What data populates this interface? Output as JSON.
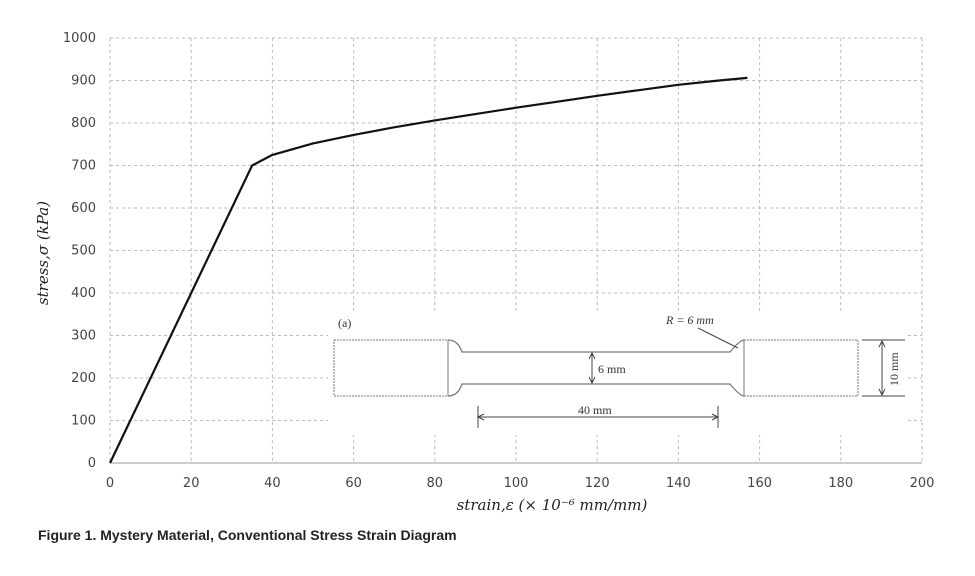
{
  "caption": "Figure 1. Mystery Material, Conventional Stress Strain Diagram",
  "chart_data": {
    "type": "line",
    "xlabel": "strain,ε (× 10⁻⁶ mm/mm)",
    "ylabel": "stress,σ (kPa)",
    "xlim": [
      0,
      200
    ],
    "ylim": [
      0,
      1000
    ],
    "xticks": [
      0,
      20,
      40,
      60,
      80,
      100,
      120,
      140,
      160,
      180,
      200
    ],
    "yticks": [
      0,
      100,
      200,
      300,
      400,
      500,
      600,
      700,
      800,
      900,
      1000
    ],
    "grid": true,
    "series": [
      {
        "x": [
          0,
          35,
          40,
          50,
          60,
          70,
          80,
          90,
          100,
          110,
          120,
          130,
          140,
          150,
          157
        ],
        "y": [
          0,
          700,
          725,
          752,
          772,
          790,
          806,
          821,
          836,
          850,
          864,
          877,
          890,
          900,
          906
        ],
        "color": "#111111"
      }
    ],
    "inset": {
      "label": "(a)",
      "radius_label": "R = 6 mm",
      "width_label": "6 mm",
      "gauge_label": "40 mm",
      "grip_label": "10 mm"
    }
  }
}
